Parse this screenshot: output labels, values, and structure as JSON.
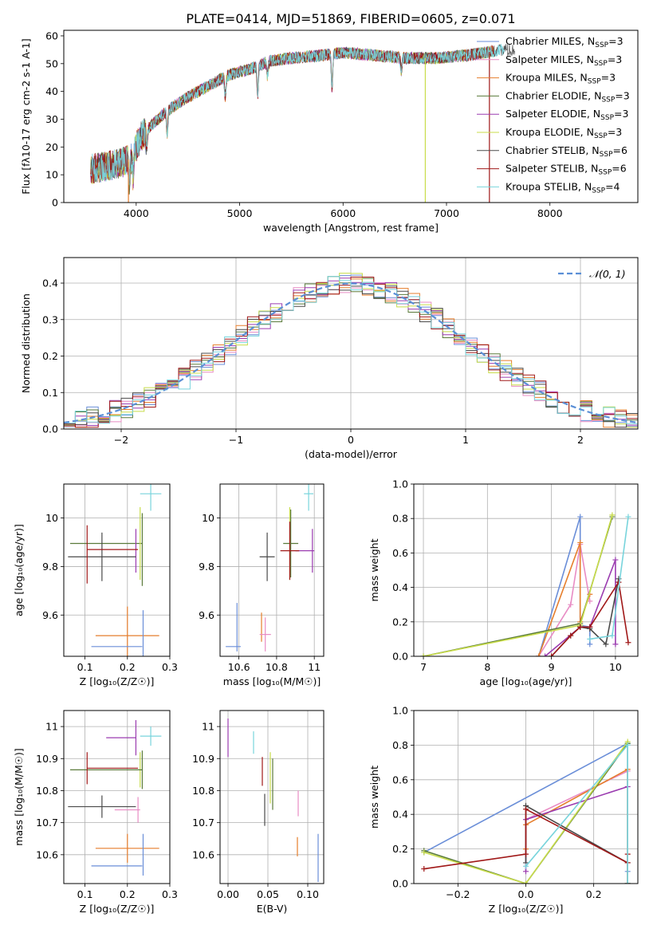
{
  "figure_title": "PLATE=0414, MJD=51869, FIBERID=0605, z=0.071",
  "colors": {
    "chabrier_miles": "#6a8ed8",
    "salpeter_miles": "#e88cc4",
    "kroupa_miles": "#e67e2c",
    "chabrier_elodie": "#5a7a3a",
    "salpeter_elodie": "#9b3cb0",
    "kroupa_elodie": "#c8dc4a",
    "chabrier_stelib": "#4a4a4a",
    "salpeter_stelib": "#a01818",
    "kroupa_stelib": "#78d4dc",
    "normal": "#5b8fd6"
  },
  "chart_data": [
    {
      "id": "spectrum",
      "type": "line",
      "xlabel": "wavelength [Angstrom, rest frame]",
      "ylabel": "Flux [f_λ10^-17 erg cm^-2 s^-1 A^-1]",
      "xlim": [
        3300,
        8850
      ],
      "ylim": [
        0,
        62
      ],
      "xticks": [
        4000,
        5000,
        6000,
        7000,
        8000
      ],
      "yticks": [
        0,
        10,
        20,
        30,
        40,
        50,
        60
      ],
      "grid": false,
      "legend_position": "right",
      "legend": [
        {
          "label": "Chabrier MILES, N",
          "sub": "SSP",
          "suffix": "=3",
          "color": "chabrier_miles"
        },
        {
          "label": "Salpeter MILES, N",
          "sub": "SSP",
          "suffix": "=3",
          "color": "salpeter_miles"
        },
        {
          "label": "Kroupa MILES, N",
          "sub": "SSP",
          "suffix": "=3",
          "color": "kroupa_miles"
        },
        {
          "label": "Chabrier ELODIE, N",
          "sub": "SSP",
          "suffix": "=3",
          "color": "chabrier_elodie"
        },
        {
          "label": "Salpeter ELODIE, N",
          "sub": "SSP",
          "suffix": "=3",
          "color": "salpeter_elodie"
        },
        {
          "label": "Kroupa ELODIE, N",
          "sub": "SSP",
          "suffix": "=3",
          "color": "kroupa_elodie"
        },
        {
          "label": "Chabrier STELIB, N",
          "sub": "SSP",
          "suffix": "=6",
          "color": "chabrier_stelib"
        },
        {
          "label": "Salpeter STELIB, N",
          "sub": "SSP",
          "suffix": "=6",
          "color": "salpeter_stelib"
        },
        {
          "label": "Kroupa STELIB, N",
          "sub": "SSP",
          "suffix": "=4",
          "color": "kroupa_stelib"
        }
      ],
      "continuum": {
        "x": [
          3560,
          3700,
          3850,
          3950,
          4050,
          4150,
          4300,
          4500,
          4700,
          4900,
          5100,
          5300,
          5500,
          5800,
          6000,
          6300,
          6600,
          6900,
          7200,
          7550
        ],
        "y": [
          12,
          13,
          14,
          16,
          24,
          28,
          33,
          38,
          42,
          46,
          48,
          51,
          52,
          53,
          54,
          53,
          52,
          52,
          53,
          55
        ]
      },
      "absorption_lines": [
        {
          "x": 3934,
          "depth": 9
        },
        {
          "x": 3969,
          "depth": 8
        },
        {
          "x": 4102,
          "depth": 6
        },
        {
          "x": 4300,
          "depth": 8
        },
        {
          "x": 4861,
          "depth": 7
        },
        {
          "x": 5175,
          "depth": 10
        },
        {
          "x": 5270,
          "depth": 5
        },
        {
          "x": 5893,
          "depth": 12
        },
        {
          "x": 6563,
          "depth": 5
        }
      ],
      "spikes": [
        {
          "x": 3925,
          "y": 0,
          "color": "kroupa_miles"
        },
        {
          "x": 6795,
          "y": 0,
          "color": "kroupa_elodie"
        },
        {
          "x": 7415,
          "y": 0,
          "color": "salpeter_stelib"
        }
      ],
      "end_x": {
        "default": 7460,
        "chabrier_stelib": 7660,
        "kroupa_stelib": 7560
      }
    },
    {
      "id": "residuals",
      "type": "step",
      "xlabel": "(data-model)/error",
      "ylabel": "Normed distribution",
      "xlim": [
        -2.5,
        2.5
      ],
      "ylim": [
        0,
        0.47
      ],
      "xticks": [
        -2,
        -1,
        0,
        1,
        2
      ],
      "xtick_labels": [
        "−2",
        "−1",
        "0",
        "1",
        "2"
      ],
      "yticks": [
        0,
        0.1,
        0.2,
        0.3,
        0.4
      ],
      "ytick_labels": [
        "0.0",
        "0.1",
        "0.2",
        "0.3",
        "0.4"
      ],
      "grid": true,
      "legend_position": "top-right",
      "normal_label": "𝒩(0, 1)",
      "bin_width": 0.1
    },
    {
      "id": "age_vs_Z",
      "type": "errorbar",
      "xlabel": "Z [log₁₀(Z/Z☉)]",
      "ylabel": "age  [log₁₀(age/yr)]",
      "xlim": [
        0.05,
        0.3
      ],
      "ylim": [
        9.43,
        10.14
      ],
      "xticks": [
        0.1,
        0.2,
        0.3
      ],
      "yticks": [
        9.6,
        9.8,
        10.0
      ],
      "grid": true,
      "points": [
        {
          "c": "kroupa_stelib",
          "x": 0.255,
          "xe": 0.025,
          "y": 10.1,
          "ye": 0.07
        },
        {
          "c": "chabrier_elodie",
          "x": 0.15,
          "xe": 0.085,
          "y": 9.895,
          "ye": 0.0
        },
        {
          "c": "kroupa_elodie",
          "x": 0.23,
          "xe": 0.0,
          "y": 9.895,
          "ye": 0.15
        },
        {
          "c": "salpeter_elodie",
          "x": 0.22,
          "xe": 0.0,
          "y": 9.865,
          "ye": 0.09
        },
        {
          "c": "chabrier_stelib",
          "x": 0.14,
          "xe": 0.08,
          "y": 9.84,
          "ye": 0.1
        },
        {
          "c": "salpeter_stelib",
          "x": 0.165,
          "xe": 0.06,
          "y": 9.87,
          "ye": 0.0
        },
        {
          "c": "salpeter_stelib",
          "x": 0.105,
          "xe": 0.0,
          "y": 9.85,
          "ye": 0.12
        },
        {
          "c": "chabrier_elodie",
          "x": 0.235,
          "xe": 0.0,
          "y": 9.87,
          "ye": 0.15
        },
        {
          "c": "kroupa_miles",
          "x": 0.2,
          "xe": 0.075,
          "y": 9.515,
          "ye": 0.12
        },
        {
          "c": "chabrier_miles",
          "x": 0.175,
          "xe": 0.06,
          "y": 9.47,
          "ye": 0.0
        },
        {
          "c": "chabrier_miles",
          "x": 0.237,
          "xe": 0.0,
          "y": 9.49,
          "ye": 0.13
        },
        {
          "c": "salpeter_miles",
          "x": 0.22,
          "xe": 0.0,
          "y": 9.52,
          "ye": 0.0
        }
      ]
    },
    {
      "id": "age_vs_mass",
      "type": "errorbar",
      "xlabel": "mass [log₁₀(M/M☉)]",
      "ylabel": "",
      "xlim": [
        10.5,
        11.05
      ],
      "ylim": [
        9.43,
        10.14
      ],
      "xticks": [
        10.6,
        10.8,
        11.0
      ],
      "yticks": [
        9.6,
        9.8,
        10.0
      ],
      "grid": true,
      "points": [
        {
          "c": "kroupa_stelib",
          "x": 10.97,
          "xe": 0.025,
          "y": 10.1,
          "ye": 0.07
        },
        {
          "c": "kroupa_elodie",
          "x": 10.87,
          "xe": 0.0,
          "y": 9.895,
          "ye": 0.15
        },
        {
          "c": "chabrier_elodie",
          "x": 10.875,
          "xe": 0.04,
          "y": 9.895,
          "ye": 0.14
        },
        {
          "c": "salpeter_elodie",
          "x": 10.99,
          "xe": 0.0,
          "y": 9.865,
          "ye": 0.09
        },
        {
          "c": "salpeter_elodie",
          "x": 10.95,
          "xe": 0.05,
          "y": 9.865,
          "ye": 0.0
        },
        {
          "c": "chabrier_stelib",
          "x": 10.75,
          "xe": 0.04,
          "y": 9.84,
          "ye": 0.1
        },
        {
          "c": "salpeter_stelib",
          "x": 10.87,
          "xe": 0.05,
          "y": 9.865,
          "ye": 0.12
        },
        {
          "c": "kroupa_miles",
          "x": 10.72,
          "xe": 0.0,
          "y": 9.55,
          "ye": 0.06
        },
        {
          "c": "salpeter_miles",
          "x": 10.74,
          "xe": 0.03,
          "y": 9.52,
          "ye": 0.07
        },
        {
          "c": "chabrier_miles",
          "x": 10.57,
          "xe": 0.04,
          "y": 9.47,
          "ye": 0.0
        },
        {
          "c": "chabrier_miles",
          "x": 10.59,
          "xe": 0.0,
          "y": 9.55,
          "ye": 0.1
        }
      ]
    },
    {
      "id": "weight_vs_age",
      "type": "line",
      "xlabel": "age  [log₁₀(age/yr)]",
      "ylabel": "mass weight",
      "xlim": [
        6.85,
        10.35
      ],
      "ylim": [
        0,
        1
      ],
      "xticks": [
        7,
        8,
        9,
        10
      ],
      "yticks": [
        0,
        0.2,
        0.4,
        0.6,
        0.8,
        1.0
      ],
      "ytick_labels": [
        "0.0",
        "0.2",
        "0.4",
        "0.6",
        "0.8",
        "1.0"
      ],
      "grid": true,
      "series": [
        {
          "c": "chabrier_miles",
          "x": [
            8.8,
            9.45,
            9.45,
            9.6,
            9.6
          ],
          "y": [
            0.0,
            0.81,
            0.18,
            0.17,
            0.07
          ]
        },
        {
          "c": "salpeter_miles",
          "x": [
            8.8,
            9.3,
            9.45,
            9.6
          ],
          "y": [
            0.0,
            0.3,
            0.65,
            0.32
          ]
        },
        {
          "c": "kroupa_miles",
          "x": [
            8.8,
            9.45,
            9.45,
            9.6
          ],
          "y": [
            0.0,
            0.66,
            0.2,
            0.36
          ]
        },
        {
          "c": "chabrier_elodie",
          "x": [
            7.0,
            9.45,
            9.95
          ],
          "y": [
            0.0,
            0.19,
            0.81
          ]
        },
        {
          "c": "salpeter_elodie",
          "x": [
            8.9,
            9.45,
            9.6,
            10.0,
            10.0
          ],
          "y": [
            0.0,
            0.17,
            0.17,
            0.56,
            0.07
          ]
        },
        {
          "c": "kroupa_elodie",
          "x": [
            7.0,
            9.45,
            9.95
          ],
          "y": [
            0.0,
            0.18,
            0.82
          ]
        },
        {
          "c": "chabrier_stelib",
          "x": [
            9.0,
            9.3,
            9.45,
            9.6,
            9.85,
            10.05
          ],
          "y": [
            0.0,
            0.12,
            0.17,
            0.16,
            0.07,
            0.45
          ]
        },
        {
          "c": "salpeter_stelib",
          "x": [
            9.0,
            9.3,
            9.45,
            9.6,
            10.05,
            10.2
          ],
          "y": [
            0.0,
            0.12,
            0.17,
            0.17,
            0.43,
            0.08
          ]
        },
        {
          "c": "kroupa_stelib",
          "x": [
            9.6,
            9.95,
            10.2
          ],
          "y": [
            0.1,
            0.12,
            0.81
          ]
        }
      ]
    },
    {
      "id": "mass_vs_Z",
      "type": "errorbar",
      "xlabel": "Z [log₁₀(Z/Z☉)]",
      "ylabel": "mass [log₁₀(M/M☉)]",
      "xlim": [
        0.05,
        0.3
      ],
      "ylim": [
        10.51,
        11.05
      ],
      "xticks": [
        0.1,
        0.2,
        0.3
      ],
      "yticks": [
        10.6,
        10.7,
        10.8,
        10.9,
        11.0
      ],
      "grid": true,
      "points": [
        {
          "c": "kroupa_stelib",
          "x": 0.255,
          "xe": 0.025,
          "y": 10.97,
          "ye": 0.03
        },
        {
          "c": "salpeter_elodie",
          "x": 0.185,
          "xe": 0.035,
          "y": 10.965,
          "ye": 0.0
        },
        {
          "c": "salpeter_elodie",
          "x": 0.22,
          "xe": 0.0,
          "y": 10.965,
          "ye": 0.055
        },
        {
          "c": "kroupa_elodie",
          "x": 0.23,
          "xe": 0.0,
          "y": 10.865,
          "ye": 0.055
        },
        {
          "c": "chabrier_elodie",
          "x": 0.15,
          "xe": 0.085,
          "y": 10.865,
          "ye": 0.0
        },
        {
          "c": "salpeter_stelib",
          "x": 0.165,
          "xe": 0.06,
          "y": 10.87,
          "ye": 0.0
        },
        {
          "c": "salpeter_stelib",
          "x": 0.105,
          "xe": 0.0,
          "y": 10.87,
          "ye": 0.05
        },
        {
          "c": "chabrier_elodie",
          "x": 0.235,
          "xe": 0.0,
          "y": 10.865,
          "ye": 0.06
        },
        {
          "c": "chabrier_stelib",
          "x": 0.14,
          "xe": 0.08,
          "y": 10.75,
          "ye": 0.035
        },
        {
          "c": "salpeter_miles",
          "x": 0.2,
          "xe": 0.03,
          "y": 10.74,
          "ye": 0.0
        },
        {
          "c": "salpeter_miles",
          "x": 0.225,
          "xe": 0.0,
          "y": 10.74,
          "ye": 0.04
        },
        {
          "c": "kroupa_miles",
          "x": 0.2,
          "xe": 0.075,
          "y": 10.62,
          "ye": 0.045
        },
        {
          "c": "chabrier_miles",
          "x": 0.175,
          "xe": 0.06,
          "y": 10.565,
          "ye": 0.0
        },
        {
          "c": "chabrier_miles",
          "x": 0.237,
          "xe": 0.0,
          "y": 10.6,
          "ye": 0.065
        }
      ]
    },
    {
      "id": "mass_vs_ebv",
      "type": "errorbar",
      "xlabel": "E(B-V)",
      "ylabel": "",
      "xlim": [
        -0.01,
        0.12
      ],
      "ylim": [
        10.51,
        11.05
      ],
      "xticks": [
        0.0,
        0.05,
        0.1
      ],
      "xtick_labels": [
        "0.00",
        "0.05",
        "0.10"
      ],
      "yticks": [
        10.6,
        10.7,
        10.8,
        10.9,
        11.0
      ],
      "grid": true,
      "points": [
        {
          "c": "salpeter_elodie",
          "x": 0.0,
          "xe": 0.0,
          "y": 10.965,
          "ye": 0.06
        },
        {
          "c": "kroupa_stelib",
          "x": 0.032,
          "xe": 0.0,
          "y": 10.95,
          "ye": 0.035
        },
        {
          "c": "salpeter_stelib",
          "x": 0.043,
          "xe": 0.0,
          "y": 10.86,
          "ye": 0.045
        },
        {
          "c": "kroupa_elodie",
          "x": 0.053,
          "xe": 0.0,
          "y": 10.84,
          "ye": 0.08
        },
        {
          "c": "chabrier_elodie",
          "x": 0.056,
          "xe": 0.0,
          "y": 10.82,
          "ye": 0.08
        },
        {
          "c": "chabrier_stelib",
          "x": 0.046,
          "xe": 0.0,
          "y": 10.74,
          "ye": 0.05
        },
        {
          "c": "salpeter_miles",
          "x": 0.088,
          "xe": 0.0,
          "y": 10.76,
          "ye": 0.04
        },
        {
          "c": "kroupa_miles",
          "x": 0.087,
          "xe": 0.0,
          "y": 10.625,
          "ye": 0.03
        },
        {
          "c": "chabrier_miles",
          "x": 0.113,
          "xe": 0.0,
          "y": 10.59,
          "ye": 0.075
        }
      ]
    },
    {
      "id": "weight_vs_Z",
      "type": "line",
      "xlabel": "Z [log₁₀(Z/Z☉)]",
      "ylabel": "mass weight",
      "xlim": [
        -0.33,
        0.33
      ],
      "ylim": [
        0,
        1
      ],
      "xticks": [
        -0.2,
        0.0,
        0.2
      ],
      "xtick_labels": [
        "−0.2",
        "0.0",
        "0.2"
      ],
      "yticks": [
        0,
        0.2,
        0.4,
        0.6,
        0.8,
        1.0
      ],
      "ytick_labels": [
        "0.0",
        "0.2",
        "0.4",
        "0.6",
        "0.8",
        "1.0"
      ],
      "grid": true,
      "series": [
        {
          "c": "chabrier_miles",
          "x": [
            -0.3,
            0.3,
            0.3
          ],
          "y": [
            0.18,
            0.81,
            0.07
          ]
        },
        {
          "c": "salpeter_miles",
          "x": [
            0.0,
            0.3,
            0.3
          ],
          "y": [
            0.37,
            0.65,
            0.0
          ]
        },
        {
          "c": "kroupa_miles",
          "x": [
            0.0,
            0.0,
            0.3,
            0.3
          ],
          "y": [
            0.2,
            0.34,
            0.66,
            0.0
          ]
        },
        {
          "c": "chabrier_elodie",
          "x": [
            -0.3,
            0.0,
            0.3,
            0.3
          ],
          "y": [
            0.19,
            0.0,
            0.81,
            0.0
          ]
        },
        {
          "c": "salpeter_elodie",
          "x": [
            0.0,
            0.0,
            0.3
          ],
          "y": [
            0.07,
            0.37,
            0.56
          ]
        },
        {
          "c": "kroupa_elodie",
          "x": [
            -0.3,
            0.0,
            0.3
          ],
          "y": [
            0.18,
            0.0,
            0.82
          ]
        },
        {
          "c": "chabrier_stelib",
          "x": [
            0.0,
            0.0,
            0.3,
            0.3
          ],
          "y": [
            0.12,
            0.45,
            0.12,
            0.0
          ]
        },
        {
          "c": "salpeter_stelib",
          "x": [
            -0.3,
            0.0,
            0.0,
            0.3,
            0.3
          ],
          "y": [
            0.085,
            0.17,
            0.43,
            0.12,
            0.17
          ]
        },
        {
          "c": "kroupa_stelib",
          "x": [
            0.0,
            0.3,
            0.3
          ],
          "y": [
            0.1,
            0.8,
            0.0
          ]
        }
      ]
    }
  ]
}
